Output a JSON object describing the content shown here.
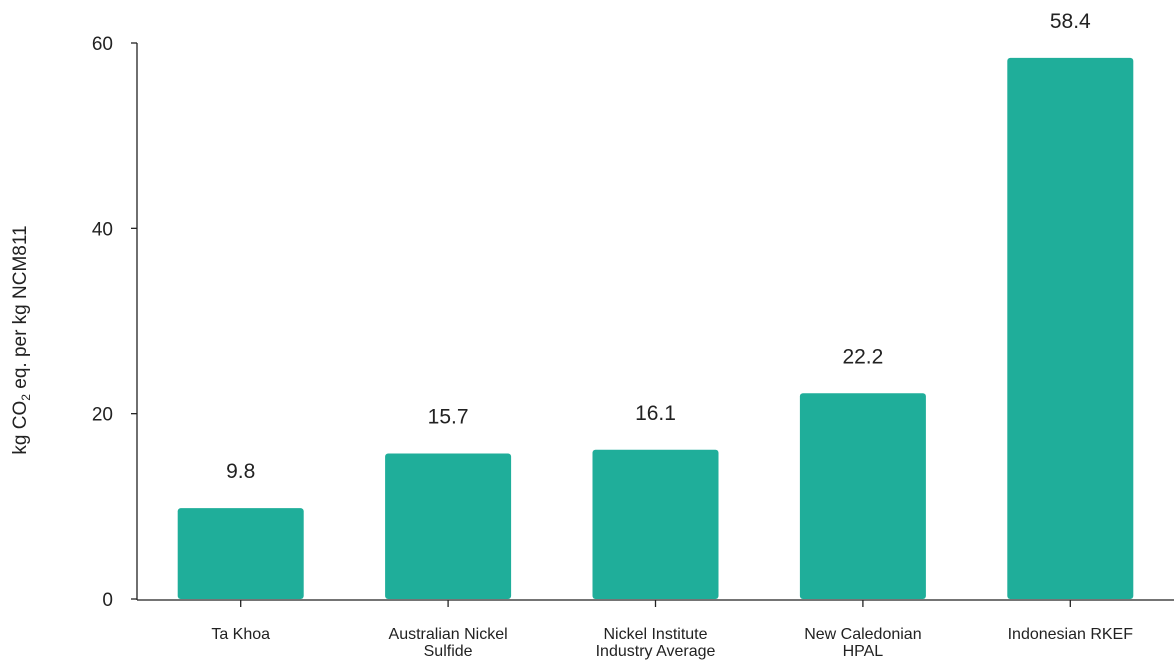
{
  "chart_data": {
    "type": "bar",
    "categories": [
      [
        "Ta Khoa"
      ],
      [
        "Australian Nickel",
        "Sulfide"
      ],
      [
        "Nickel Institute",
        "Industry Average"
      ],
      [
        "New Caledonian",
        "HPAL"
      ],
      [
        "Indonesian RKEF"
      ]
    ],
    "values": [
      9.8,
      15.7,
      16.1,
      22.2,
      58.4
    ],
    "data_labels": [
      "9.8",
      "15.7",
      "16.1",
      "22.2",
      "58.4"
    ],
    "ylabel": {
      "before": "kg CO",
      "subscript": "2",
      "after": " eq. per kg NCM811"
    },
    "xlabel": "",
    "ylim": [
      0,
      60
    ],
    "yticks": [
      0,
      20,
      40,
      60
    ],
    "bar_color": "#1fae9a",
    "grid": false
  }
}
